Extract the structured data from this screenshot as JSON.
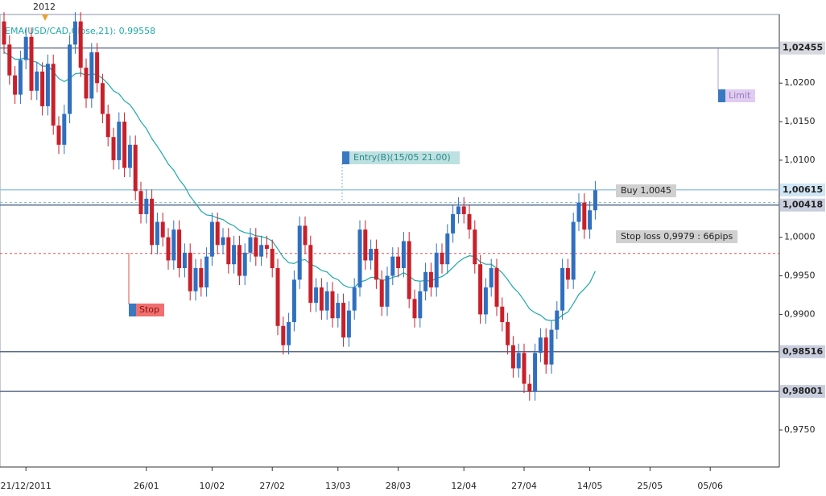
{
  "chart_data": {
    "type": "candlestick",
    "top_label": "2012",
    "categories": [
      null,
      null,
      null,
      null,
      "21/12/2011",
      null,
      null,
      null,
      null,
      null,
      null,
      null,
      null,
      null,
      null,
      null,
      null,
      null,
      null,
      null,
      null,
      null,
      null,
      null,
      null,
      null,
      "26/01",
      null,
      null,
      null,
      null,
      null,
      null,
      null,
      null,
      null,
      null,
      null,
      "10/02",
      null,
      null,
      null,
      null,
      null,
      null,
      null,
      null,
      null,
      null,
      "27/02",
      null,
      null,
      null,
      null,
      null,
      null,
      null,
      null,
      null,
      null,
      null,
      "13/03",
      null,
      null,
      null,
      null,
      null,
      null,
      null,
      null,
      null,
      null,
      "28/03",
      null,
      null,
      null,
      null,
      null,
      null,
      null,
      null,
      null,
      null,
      null,
      "12/04",
      null,
      null,
      null,
      null,
      null,
      null,
      null,
      null,
      null,
      null,
      "27/04",
      null,
      null,
      null,
      null,
      null,
      null,
      null,
      null,
      null,
      null,
      null,
      "14/05",
      null,
      null,
      null,
      null,
      null,
      null,
      null,
      null,
      null,
      null,
      "25/05",
      null,
      null,
      null,
      null,
      null,
      null,
      null,
      null,
      null,
      null,
      "05/06"
    ],
    "open": [
      1.028,
      1.025,
      1.021,
      1.0185,
      1.023,
      1.026,
      1.019,
      1.0215,
      1.017,
      1.0225,
      1.0145,
      1.012,
      1.016,
      1.025,
      1.028,
      1.022,
      1.018,
      1.024,
      1.02,
      1.016,
      1.013,
      1.01,
      1.015,
      1.009,
      1.012,
      1.006,
      1.003,
      1.005,
      0.999,
      1.002,
      1.0,
      0.997,
      1.001,
      0.996,
      0.998,
      0.993,
      0.996,
      0.9935,
      0.9975,
      1.002,
      0.999,
      1.0,
      0.9965,
      0.999,
      0.995,
      0.998,
      1.0,
      0.9975,
      0.999,
      0.9985,
      0.996,
      0.9885,
      0.986,
      0.989,
      0.9945,
      1.0015,
      0.999,
      0.9915,
      0.9935,
      0.9905,
      0.993,
      0.9895,
      0.9915,
      0.987,
      0.9905,
      0.9935,
      1.001,
      0.997,
      0.9985,
      0.9945,
      0.991,
      0.995,
      0.9975,
      0.996,
      0.9995,
      0.992,
      0.9895,
      0.993,
      0.9955,
      0.9935,
      0.998,
      0.9965,
      1.0005,
      1.003,
      1.004,
      1.003,
      1.001,
      0.9965,
      0.99,
      0.9935,
      0.996,
      0.991,
      0.989,
      0.986,
      0.983,
      0.985,
      0.981,
      0.98,
      0.985,
      0.987,
      0.9835,
      0.988,
      0.9905,
      0.996,
      0.9945,
      1.002,
      1.0045,
      1.001,
      1.0035,
      null,
      null,
      null,
      null,
      null,
      null,
      null,
      null,
      null,
      null,
      null,
      null,
      null,
      null,
      null,
      null,
      null,
      null,
      null,
      null,
      null
    ],
    "high": [
      1.0292,
      1.0262,
      1.0222,
      1.0242,
      1.0272,
      1.0272,
      1.0227,
      1.0227,
      1.0237,
      1.0237,
      1.0157,
      1.0172,
      1.0262,
      1.0292,
      1.0292,
      1.0232,
      1.0252,
      1.0252,
      1.0212,
      1.0172,
      1.0142,
      1.0162,
      1.0162,
      1.0132,
      1.0132,
      1.0072,
      1.0062,
      1.0062,
      1.0032,
      1.0032,
      1.0012,
      1.0022,
      1.0022,
      0.9992,
      0.9992,
      0.9972,
      0.9972,
      0.9987,
      1.0032,
      1.0032,
      1.0012,
      1.0012,
      1.0002,
      1.0002,
      0.9992,
      1.0012,
      1.0012,
      1.0002,
      1.0002,
      0.9997,
      0.9972,
      0.9897,
      0.9902,
      0.9957,
      1.0027,
      1.0027,
      1.0002,
      0.9947,
      0.9947,
      0.9942,
      0.9942,
      0.9927,
      0.9927,
      0.9917,
      0.9947,
      1.0022,
      1.0022,
      0.9997,
      0.9997,
      0.9957,
      0.9962,
      0.9987,
      0.9987,
      1.0007,
      1.0007,
      0.9932,
      0.9942,
      0.9967,
      0.9967,
      0.9992,
      0.9992,
      1.0017,
      1.0042,
      1.0052,
      1.0052,
      1.0042,
      1.0022,
      0.9977,
      0.9947,
      0.9972,
      0.9972,
      0.9922,
      0.9902,
      0.9872,
      0.9862,
      0.9862,
      0.9822,
      0.9862,
      0.9882,
      0.9882,
      0.9892,
      0.9917,
      0.9972,
      0.9972,
      1.0032,
      1.0057,
      1.0057,
      1.0047,
      1.0073,
      null,
      null,
      null,
      null,
      null,
      null,
      null,
      null,
      null,
      null,
      null,
      null,
      null,
      null,
      null,
      null,
      null,
      null,
      null,
      null,
      null
    ],
    "low": [
      1.0238,
      1.0198,
      1.0173,
      1.0173,
      1.0218,
      1.0178,
      1.0178,
      1.0158,
      1.0158,
      1.0133,
      1.0108,
      1.0108,
      1.0148,
      1.0238,
      1.0208,
      1.0168,
      1.0168,
      1.0188,
      1.0148,
      1.0118,
      1.0088,
      1.0088,
      1.0078,
      1.0078,
      1.0048,
      1.0018,
      1.0018,
      0.9978,
      0.9978,
      0.9988,
      0.9958,
      0.9958,
      0.9948,
      0.9948,
      0.9918,
      0.9918,
      0.9923,
      0.9923,
      0.9963,
      0.9978,
      0.9978,
      0.9953,
      0.9953,
      0.9938,
      0.9938,
      0.9968,
      0.9963,
      0.9963,
      0.9973,
      0.9948,
      0.9873,
      0.9848,
      0.9848,
      0.9878,
      0.9933,
      0.9978,
      0.9903,
      0.9903,
      0.9893,
      0.9893,
      0.9883,
      0.9883,
      0.9858,
      0.9858,
      0.9893,
      0.9923,
      0.9958,
      0.9958,
      0.9933,
      0.9898,
      0.9898,
      0.9938,
      0.9948,
      0.9948,
      0.9908,
      0.9883,
      0.9883,
      0.9918,
      0.9923,
      0.9923,
      0.9953,
      0.9953,
      0.9993,
      1.0018,
      1.0018,
      0.9998,
      0.9953,
      0.9888,
      0.9888,
      0.9923,
      0.9898,
      0.9878,
      0.9848,
      0.9818,
      0.9818,
      0.9798,
      0.9788,
      0.9788,
      0.9838,
      0.9823,
      0.9823,
      0.9868,
      0.9893,
      0.9933,
      0.9933,
      1.0008,
      0.9998,
      0.9998,
      1.0023,
      null,
      null,
      null,
      null,
      null,
      null,
      null,
      null,
      null,
      null,
      null,
      null,
      null,
      null,
      null,
      null,
      null,
      null,
      null,
      null,
      null
    ],
    "close": [
      1.025,
      1.021,
      1.0185,
      1.023,
      1.026,
      1.019,
      1.0215,
      1.017,
      1.0225,
      1.0145,
      1.012,
      1.016,
      1.025,
      1.028,
      1.022,
      1.018,
      1.024,
      1.02,
      1.016,
      1.013,
      1.01,
      1.015,
      1.009,
      1.012,
      1.006,
      1.003,
      1.005,
      0.999,
      1.002,
      1.0,
      0.997,
      1.001,
      0.996,
      0.998,
      0.993,
      0.996,
      0.9935,
      0.9975,
      1.002,
      0.999,
      1.0,
      0.9965,
      0.999,
      0.995,
      0.998,
      1.0,
      0.9975,
      0.999,
      0.9985,
      0.996,
      0.9885,
      0.986,
      0.989,
      0.9945,
      1.0015,
      0.999,
      0.9915,
      0.9935,
      0.9905,
      0.993,
      0.9895,
      0.9915,
      0.987,
      0.9905,
      0.9935,
      1.001,
      0.997,
      0.9985,
      0.9945,
      0.991,
      0.995,
      0.9975,
      0.996,
      0.9995,
      0.992,
      0.9895,
      0.993,
      0.9955,
      0.9935,
      0.998,
      0.9965,
      1.0005,
      1.003,
      1.004,
      1.003,
      1.001,
      0.9965,
      0.99,
      0.9935,
      0.996,
      0.991,
      0.989,
      0.986,
      0.983,
      0.985,
      0.981,
      0.98,
      0.985,
      0.987,
      0.9835,
      0.988,
      0.9905,
      0.996,
      0.9945,
      1.002,
      1.0045,
      1.001,
      1.0035,
      1.0061,
      null,
      null,
      null,
      null,
      null,
      null,
      null,
      null,
      null,
      null,
      null,
      null,
      null,
      null,
      null,
      null,
      null,
      null,
      null,
      null,
      null
    ],
    "up_color": "#2f6fc0",
    "down_color": "#c8202a",
    "ema": {
      "name": "EMA(USD/CAD,Close,21): 0,99558",
      "color": "#20a8a8",
      "values": [
        1.024,
        1.0236,
        1.0231,
        1.0231,
        1.0233,
        1.0229,
        1.0227,
        1.0222,
        1.0222,
        1.0215,
        1.0206,
        1.0202,
        1.0206,
        1.0212,
        1.0213,
        1.021,
        1.0212,
        1.0211,
        1.0206,
        1.0199,
        1.019,
        1.0186,
        1.0177,
        1.0172,
        1.0162,
        1.015,
        1.0141,
        1.0128,
        1.0118,
        1.0107,
        1.0095,
        1.0087,
        1.0075,
        1.0066,
        1.0053,
        1.0044,
        1.0034,
        1.0029,
        1.0028,
        1.0025,
        1.0023,
        1.0018,
        1.0015,
        1.0009,
        1.0006,
        1.0005,
        1.0002,
        1.0001,
        0.9999,
        0.9995,
        0.9985,
        0.9974,
        0.9967,
        0.9966,
        0.997,
        0.9971,
        0.9965,
        0.9962,
        0.9957,
        0.9955,
        0.9948,
        0.9945,
        0.9938,
        0.9935,
        0.9935,
        0.9942,
        0.9944,
        0.9948,
        0.9948,
        0.9944,
        0.9945,
        0.9948,
        0.995,
        0.9954,
        0.995,
        0.9944,
        0.9943,
        0.9944,
        0.9943,
        0.9947,
        0.9949,
        0.9954,
        0.9961,
        0.9968,
        0.9973,
        0.9976,
        0.9975,
        0.9968,
        0.9965,
        0.9965,
        0.996,
        0.9954,
        0.9945,
        0.9935,
        0.9928,
        0.9918,
        0.9907,
        0.9902,
        0.9899,
        0.9893,
        0.9892,
        0.9893,
        0.9899,
        0.9903,
        0.9914,
        0.9926,
        0.9933,
        0.9941,
        0.9956,
        null,
        null,
        null,
        null,
        null,
        null,
        null,
        null,
        null,
        null,
        null,
        null,
        null,
        null,
        null,
        null,
        null,
        null,
        null,
        null,
        null
      ]
    },
    "ylim": [
      0.9702,
      1.0289
    ],
    "yticks": [
      {
        "value": 0.975,
        "label": "0,9750"
      },
      {
        "value": 0.99,
        "label": "0,9900"
      },
      {
        "value": 0.995,
        "label": "0,9950"
      },
      {
        "value": 1.0,
        "label": "1,0000"
      },
      {
        "value": 1.01,
        "label": "1,0100"
      },
      {
        "value": 1.015,
        "label": "1,0150"
      },
      {
        "value": 1.02,
        "label": "1,0200"
      }
    ],
    "levels": [
      {
        "value": 1.02455,
        "label": "1,02455",
        "color": "#6a7896",
        "box": "#d8d8e0"
      },
      {
        "value": 1.00615,
        "label": "1,00615",
        "color": "#9cc8e0",
        "box": "#cfe6f4"
      },
      {
        "value": 1.00418,
        "label": "1,00418",
        "color": "#5a6a8a",
        "box": "#c9cede"
      },
      {
        "value": 0.98516,
        "label": "0,98516",
        "color": "#5a6a8a",
        "box": "#c9cede"
      },
      {
        "value": 0.98001,
        "label": "0,98001",
        "color": "#5a6a8a",
        "box": "#c9cede"
      }
    ],
    "orders": [
      {
        "value": 1.0045,
        "label": "Buy 1,0045",
        "color": "#7ab8d8"
      },
      {
        "value": 0.9979,
        "label": "Stop loss 0,9979 : 66pips",
        "color": "#e05050"
      }
    ],
    "tags": {
      "entry": "Entry(B)(15/05 21.00)",
      "limit": "Limit",
      "stop": "Stop"
    }
  }
}
